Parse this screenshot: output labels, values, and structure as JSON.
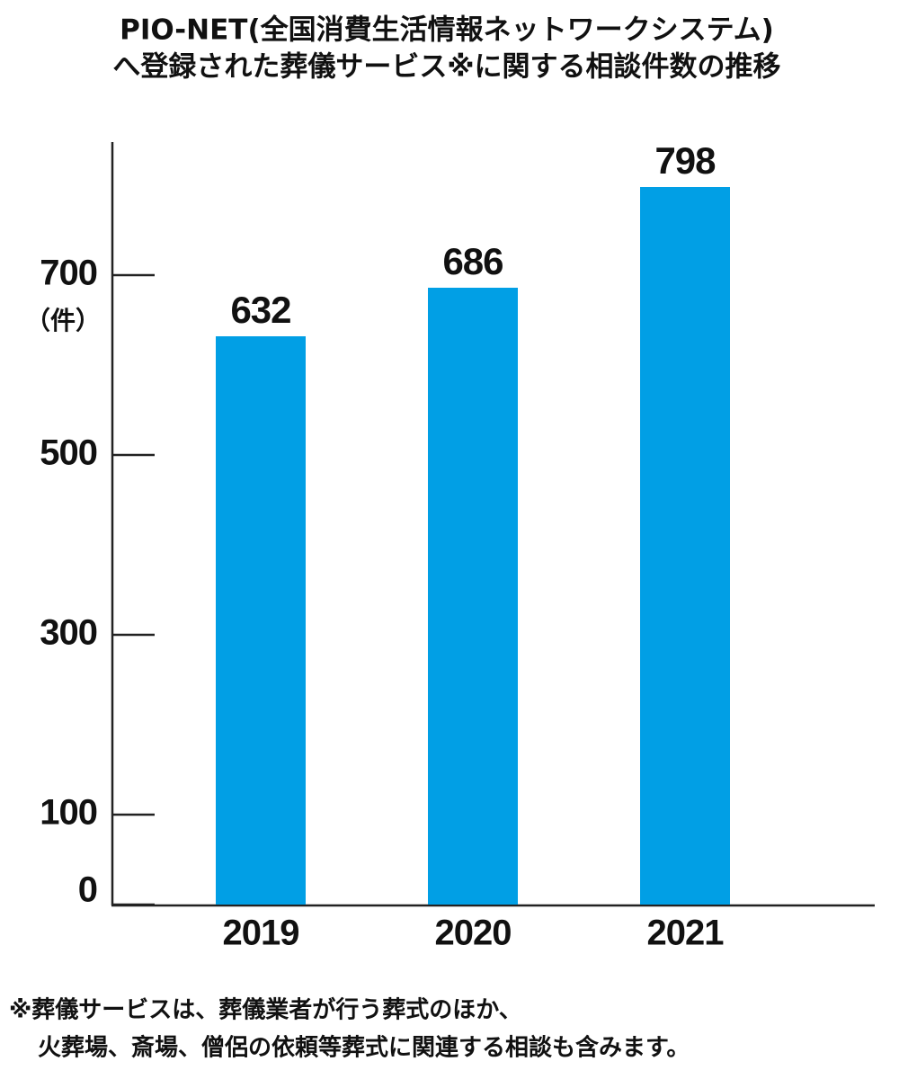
{
  "chart_data": {
    "type": "bar",
    "title": [
      "PIO-NET(全国消費生活情報ネットワークシステム)",
      "へ登録された葬儀サービス※に関する相談件数の推移"
    ],
    "y_unit": "（件）",
    "categories": [
      "2019",
      "2020",
      "2021"
    ],
    "values": [
      632,
      686,
      798
    ],
    "color": "#019fe5",
    "ylim": [
      0,
      850
    ],
    "yticks": [
      0,
      100,
      300,
      500,
      700
    ],
    "grid": false,
    "footnote": [
      "※葬儀サービスは、葬儀業者が行う葬式のほか、",
      "火葬場、斎場、僧侶の依頼等葬式に関連する相談も含みます。"
    ]
  }
}
